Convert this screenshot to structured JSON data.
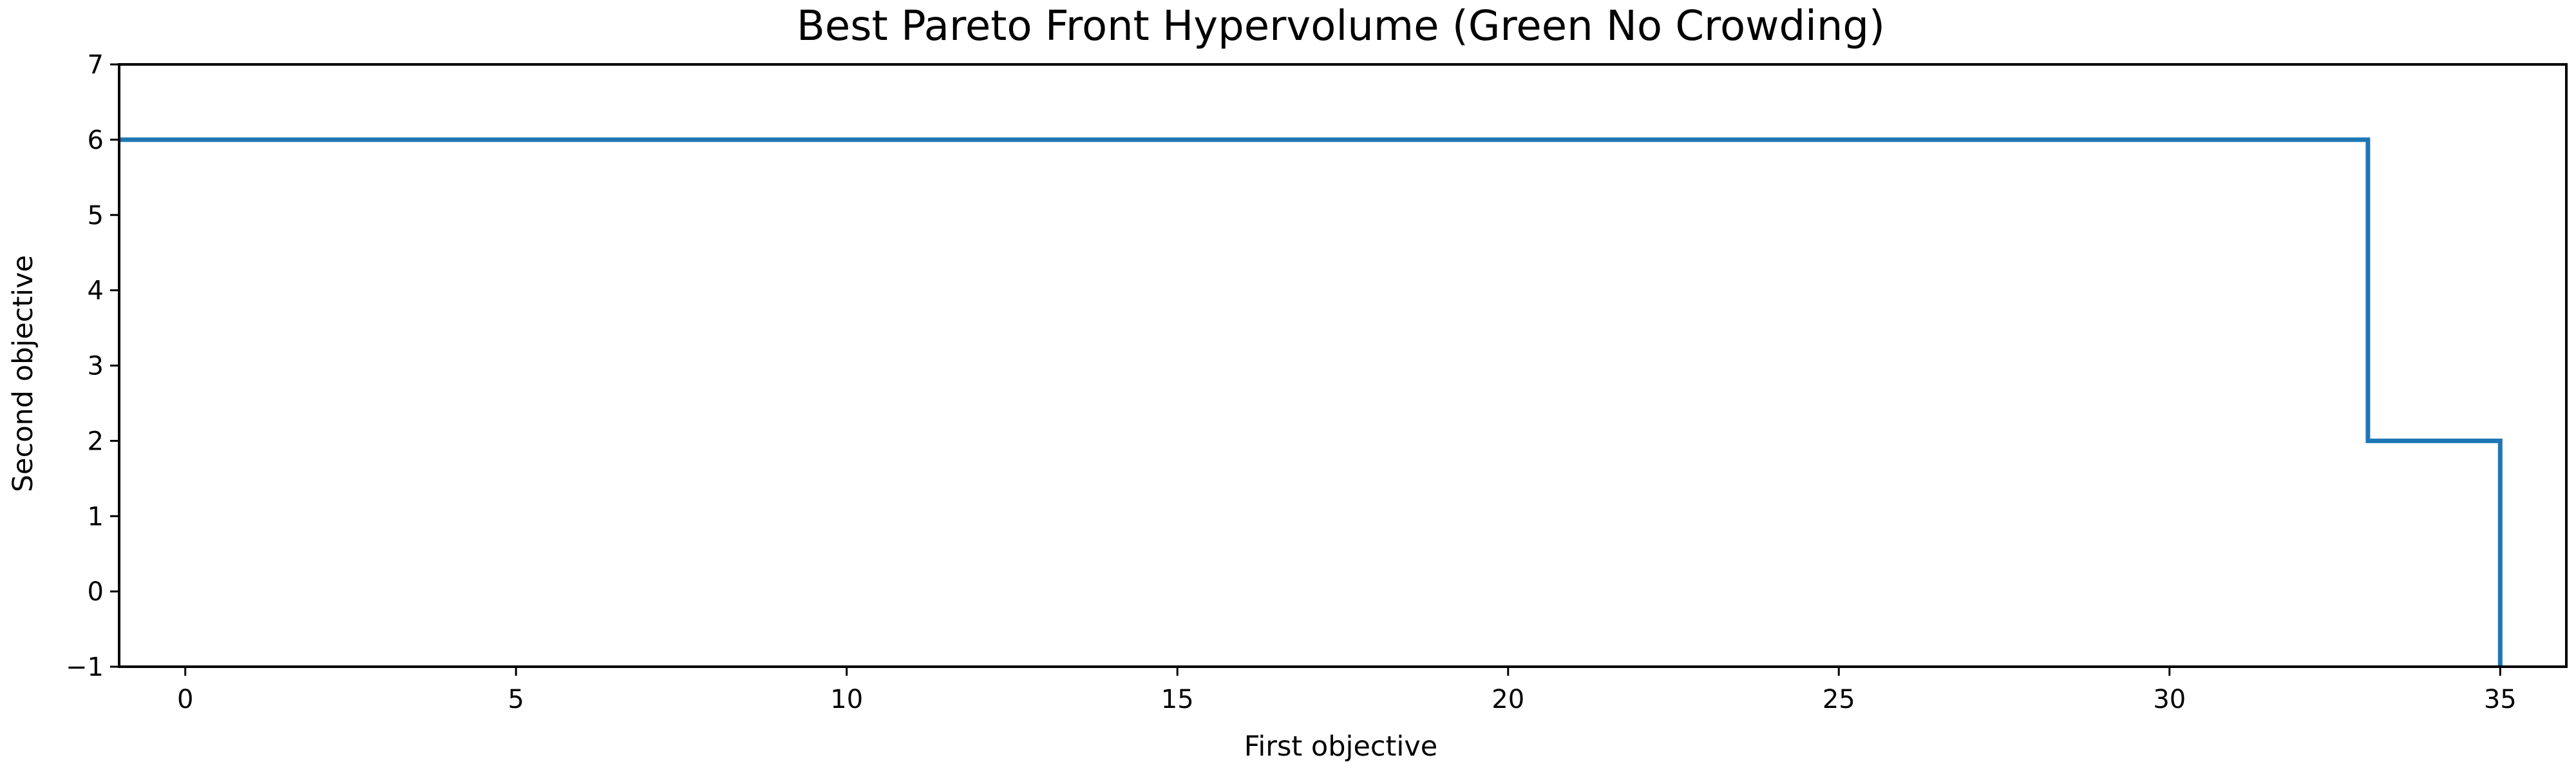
{
  "chart_data": {
    "type": "line",
    "title": "Best Pareto Front Hypervolume (Green No Crowding)",
    "xlabel": "First objective",
    "ylabel": "Second objective",
    "xlim": [
      -1,
      36
    ],
    "ylim": [
      -1,
      7
    ],
    "xticks": [
      0,
      5,
      10,
      15,
      20,
      25,
      30,
      35
    ],
    "yticks": [
      -1,
      0,
      1,
      2,
      3,
      4,
      5,
      6,
      7
    ],
    "xtick_labels": [
      "0",
      "5",
      "10",
      "15",
      "20",
      "25",
      "30",
      "35"
    ],
    "ytick_labels": [
      "−1",
      "0",
      "1",
      "2",
      "3",
      "4",
      "5",
      "6",
      "7"
    ],
    "grid": false,
    "series": [
      {
        "step": "post",
        "color": "#1f77b4",
        "x": [
          -1,
          33,
          33,
          35,
          35
        ],
        "y": [
          6,
          6,
          2,
          2,
          -1
        ]
      }
    ]
  }
}
